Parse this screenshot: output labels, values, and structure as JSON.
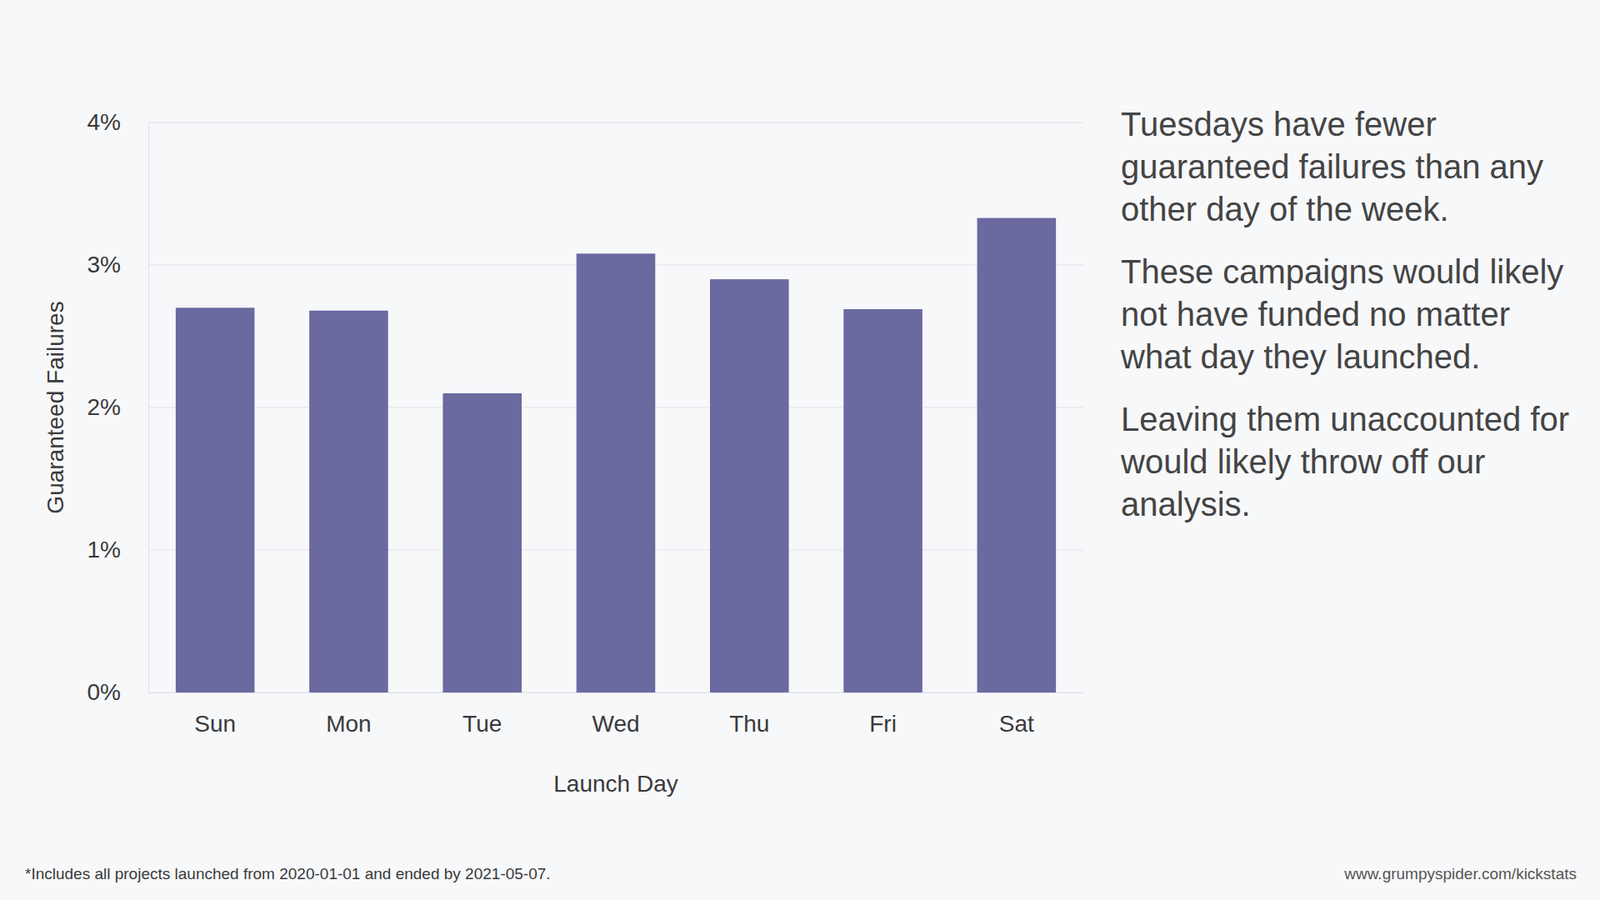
{
  "chart_data": {
    "type": "bar",
    "categories": [
      "Sun",
      "Mon",
      "Tue",
      "Wed",
      "Thu",
      "Fri",
      "Sat"
    ],
    "values": [
      2.7,
      2.68,
      2.1,
      3.08,
      2.9,
      2.69,
      3.33
    ],
    "color": "#6a6aa0",
    "x_label": "Launch Day",
    "y_label": "Guaranteed Failures",
    "ylim": [
      0,
      4
    ],
    "yticks": [
      {
        "value": 0,
        "label": "0%"
      },
      {
        "value": 1,
        "label": "1%"
      },
      {
        "value": 2,
        "label": "2%"
      },
      {
        "value": 3,
        "label": "3%"
      },
      {
        "value": 4,
        "label": "4%"
      }
    ],
    "grid": true,
    "annotations": [
      "Tuesdays have fewer guaranteed failures than any other day of the week.",
      "These campaigns would likely not have funded no matter what day they launched.",
      "Leaving them unaccounted for would likely throw off our analysis."
    ],
    "footnote": "*Includes all projects launched from 2020-01-01 and ended by 2021-05-07.",
    "source": "www.grumpyspider.com/kickstats"
  }
}
